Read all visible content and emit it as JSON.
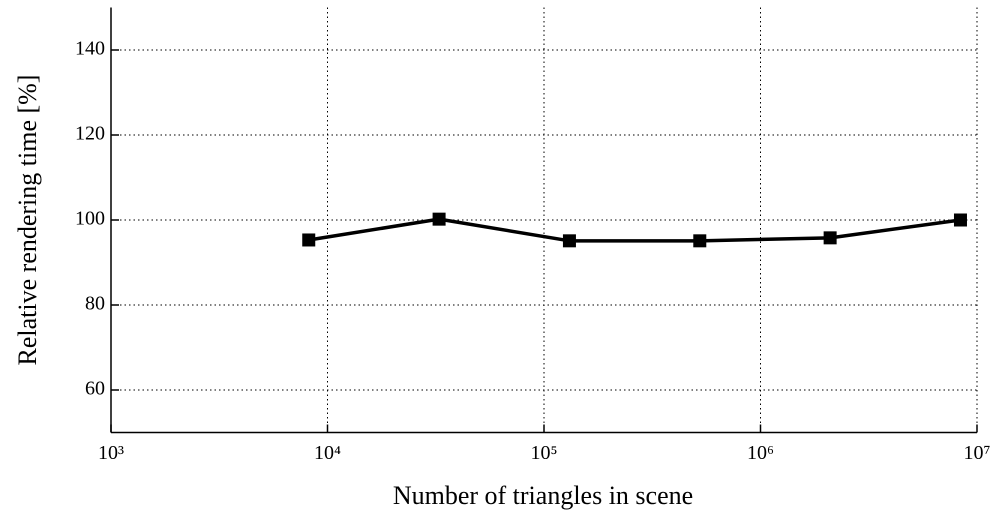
{
  "chart_data": {
    "type": "line",
    "xlabel": "Number of triangles in scene",
    "ylabel": "Relative rendering time [%]",
    "x": [
      8192,
      32768,
      131072,
      524288,
      2097152,
      8388608
    ],
    "series": [
      {
        "name": "Relative rendering time",
        "color": "#000000",
        "values": [
          95.3,
          100.2,
          95.1,
          95.1,
          95.8,
          100.0
        ]
      }
    ],
    "xscale": "log",
    "xlim": [
      1000,
      10000000
    ],
    "xticks": [
      {
        "value": 1000,
        "label": "10³"
      },
      {
        "value": 10000,
        "label": "10⁴"
      },
      {
        "value": 100000,
        "label": "10⁵"
      },
      {
        "value": 1000000,
        "label": "10⁶"
      },
      {
        "value": 10000000,
        "label": "10⁷"
      }
    ],
    "ylim": [
      50,
      150
    ],
    "yticks": [
      60,
      80,
      100,
      120,
      140
    ],
    "grid": true
  }
}
